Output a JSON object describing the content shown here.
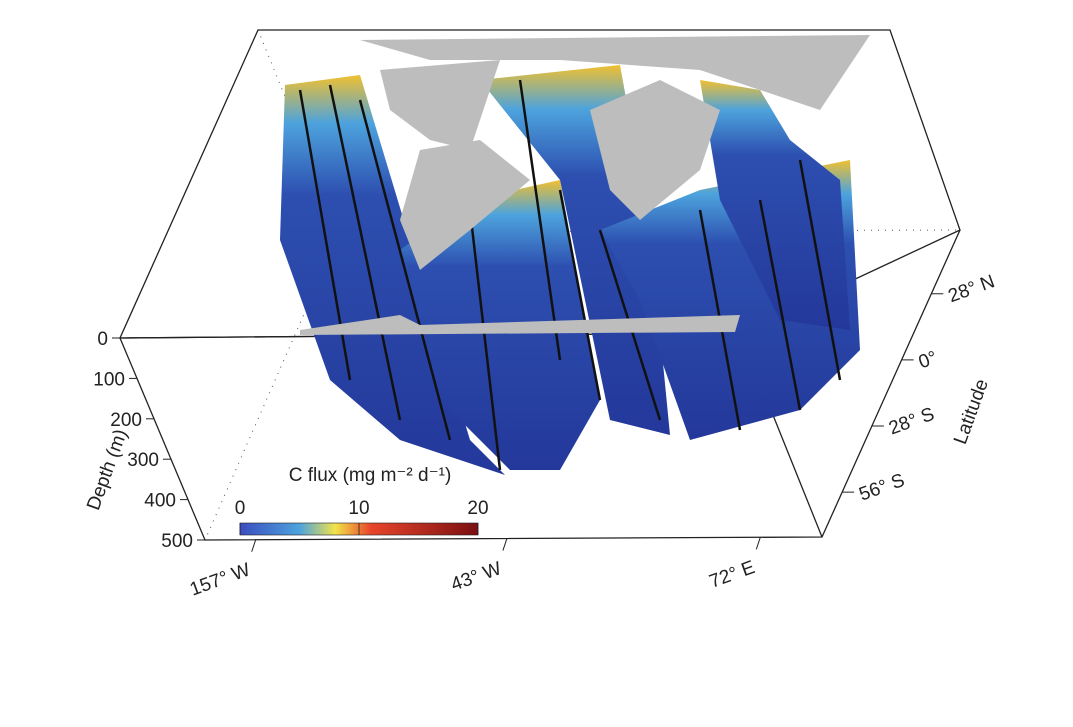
{
  "chart_data": {
    "type": "3d-section",
    "zlabel": "Depth (m)",
    "zlim": [
      0,
      500
    ],
    "zticks": [
      0,
      100,
      200,
      300,
      400,
      500
    ],
    "xlim": [
      -180,
      100
    ],
    "xticks": [
      {
        "value": -157,
        "label": "157° W"
      },
      {
        "value": -43,
        "label": "43° W"
      },
      {
        "value": 72,
        "label": "72° E"
      }
    ],
    "ylabel": "Latitude",
    "ylim": [
      -75,
      55
    ],
    "yticks": [
      {
        "value": -56,
        "label": "56° S"
      },
      {
        "value": -28,
        "label": "28° S"
      },
      {
        "value": 0,
        "label": "0°"
      },
      {
        "value": 28,
        "label": "28° N"
      }
    ],
    "colorbar": {
      "label": "C flux (mg m⁻² d⁻¹)",
      "lim": [
        0,
        20
      ],
      "ticks": [
        0,
        10,
        20
      ]
    }
  }
}
